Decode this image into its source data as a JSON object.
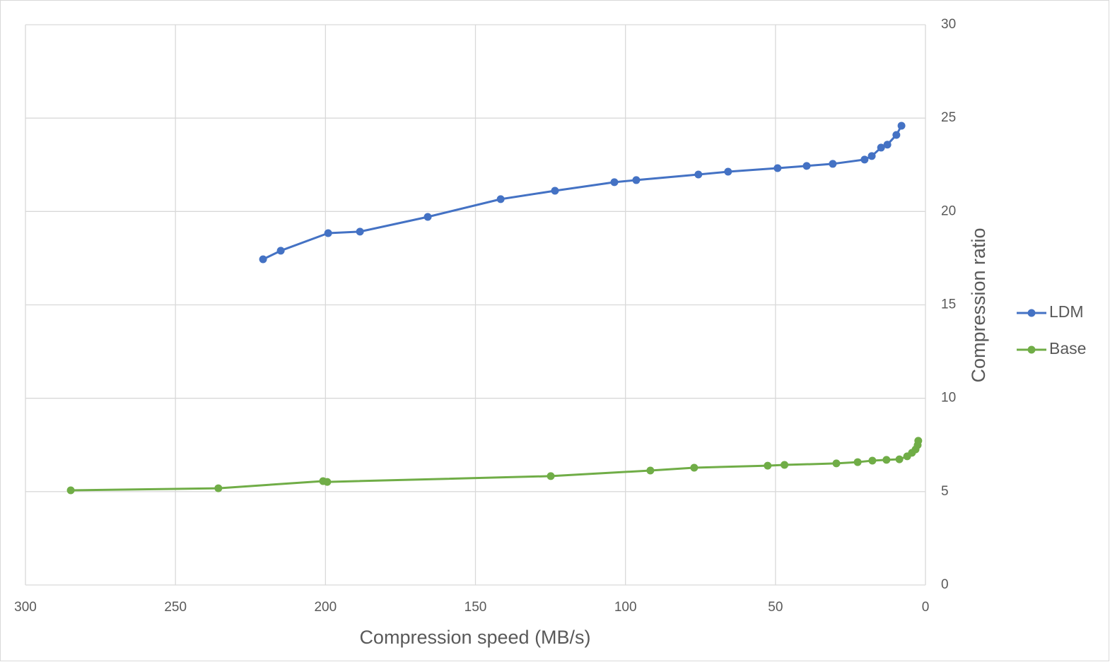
{
  "chart_data": {
    "type": "line",
    "x_label": "Compression speed (MB/s)",
    "y_label": "Compression ratio",
    "xlim": [
      300,
      0
    ],
    "xticks": [
      300,
      250,
      200,
      150,
      100,
      50,
      0
    ],
    "ylim": [
      0,
      30
    ],
    "yticks": [
      0,
      5,
      10,
      15,
      20,
      25,
      30
    ],
    "grid": true,
    "legend": "right",
    "series": [
      {
        "name": "LDM",
        "color": "#4472c4",
        "x": [
          220.8,
          214.9,
          199.1,
          188.5,
          165.9,
          141.6,
          123.5,
          103.7,
          96.4,
          75.7,
          65.8,
          49.3,
          39.6,
          30.9,
          20.3,
          17.9,
          14.8,
          12.7,
          9.7,
          8.0
        ],
        "values": [
          17.44,
          17.9,
          18.84,
          18.92,
          19.71,
          20.66,
          21.11,
          21.57,
          21.68,
          21.98,
          22.13,
          22.32,
          22.44,
          22.55,
          22.78,
          22.97,
          23.42,
          23.58,
          24.1,
          24.59
        ]
      },
      {
        "name": "Base",
        "color": "#70ad47",
        "x": [
          284.9,
          235.7,
          200.8,
          199.4,
          124.9,
          91.7,
          77.1,
          52.6,
          47.0,
          29.7,
          22.6,
          17.7,
          13.0,
          8.7,
          6.1,
          4.5,
          3.3,
          2.6,
          2.4
        ],
        "values": [
          5.07,
          5.18,
          5.56,
          5.52,
          5.83,
          6.13,
          6.28,
          6.39,
          6.43,
          6.51,
          6.58,
          6.66,
          6.7,
          6.73,
          6.89,
          7.08,
          7.26,
          7.49,
          7.72
        ]
      }
    ]
  }
}
